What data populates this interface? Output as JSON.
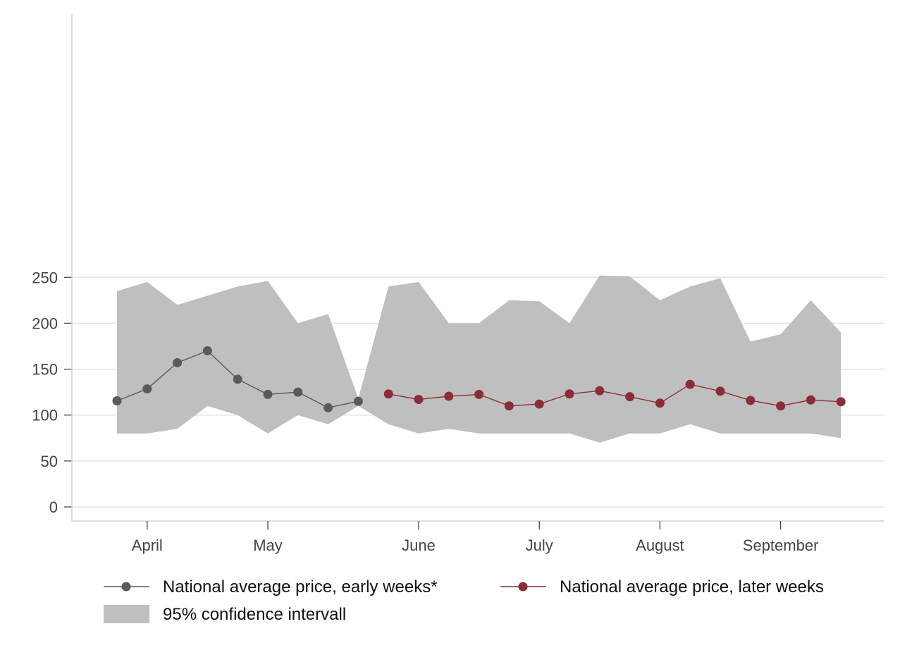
{
  "chart_data": {
    "type": "line",
    "title": "",
    "xlabel": "",
    "ylabel": "",
    "ylim": [
      0,
      250
    ],
    "yticks": [
      0,
      50,
      100,
      150,
      200,
      250
    ],
    "xtick_labels": [
      {
        "label": "April",
        "week": 1
      },
      {
        "label": "May",
        "week": 5
      },
      {
        "label": "June",
        "week": 10
      },
      {
        "label": "July",
        "week": 14
      },
      {
        "label": "August",
        "week": 18
      },
      {
        "label": "September",
        "week": 22
      }
    ],
    "grid": "horizontal",
    "legend_position": "bottom",
    "series": [
      {
        "name": "National average price, early weeks*",
        "color": "#5a5a5a",
        "x": [
          0,
          1,
          2,
          3,
          4,
          5,
          6,
          7,
          8
        ],
        "values": [
          115.5,
          128.5,
          157,
          170,
          139,
          122.5,
          125,
          108,
          115
        ]
      },
      {
        "name": "National average price, later weeks",
        "color": "#8b2c36",
        "x": [
          9,
          10,
          11,
          12,
          13,
          14,
          15,
          16,
          17,
          18,
          19,
          20,
          21,
          22,
          23,
          24
        ],
        "values": [
          123,
          117,
          120.5,
          122.5,
          110,
          112,
          123,
          126.5,
          120,
          113,
          133.5,
          126,
          116,
          110,
          116.5,
          114.5
        ]
      }
    ],
    "confidence_band": {
      "name": "95% confidence intervall",
      "color": "#bfbfbf",
      "x": [
        0,
        1,
        2,
        3,
        4,
        5,
        6,
        7,
        8,
        9,
        10,
        11,
        12,
        13,
        14,
        15,
        16,
        17,
        18,
        19,
        20,
        21,
        22,
        23,
        24
      ],
      "upper": [
        235,
        245,
        220,
        230,
        240,
        246,
        200,
        210,
        118,
        240,
        245,
        200,
        200,
        225,
        224,
        200,
        252,
        251,
        225,
        240,
        249,
        180,
        188,
        225,
        190
      ],
      "lower": [
        80,
        80,
        85,
        110,
        100,
        80,
        100,
        90,
        110,
        90,
        80,
        85,
        80,
        80,
        80,
        80,
        70,
        80,
        80,
        90,
        80,
        80,
        80,
        80,
        75
      ]
    }
  }
}
